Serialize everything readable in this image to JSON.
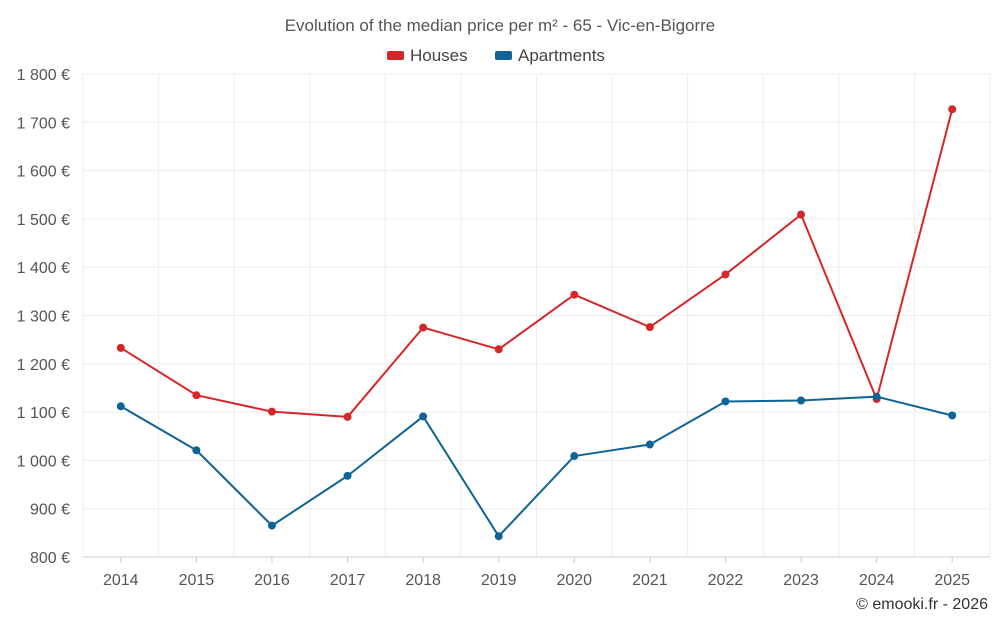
{
  "chart_data": {
    "type": "line",
    "title": "Evolution of the median price per m² - 65 - Vic-en-Bigorre",
    "categories": [
      "2014",
      "2015",
      "2016",
      "2017",
      "2018",
      "2019",
      "2020",
      "2021",
      "2022",
      "2023",
      "2024",
      "2025"
    ],
    "series": [
      {
        "name": "Houses",
        "color": "#d62728",
        "values": [
          1233,
          1135,
          1101,
          1090,
          1275,
          1230,
          1343,
          1276,
          1385,
          1509,
          1127,
          1727
        ]
      },
      {
        "name": "Apartments",
        "color": "#0f6395",
        "values": [
          1112,
          1021,
          865,
          968,
          1091,
          843,
          1009,
          1033,
          1122,
          1124,
          1132,
          1093
        ]
      }
    ],
    "ylim": [
      800,
      1800
    ],
    "yticks": [
      800,
      900,
      1000,
      1100,
      1200,
      1300,
      1400,
      1500,
      1600,
      1700,
      1800
    ],
    "ytick_labels": [
      "800 €",
      "900 €",
      "1 000 €",
      "1 100 €",
      "1 200 €",
      "1 300 €",
      "1 400 €",
      "1 500 €",
      "1 600 €",
      "1 700 €",
      "1 800 €"
    ],
    "xlabel": "",
    "ylabel": "",
    "grid": true,
    "legend": "top-center"
  },
  "credit": "© emooki.fr - 2026"
}
